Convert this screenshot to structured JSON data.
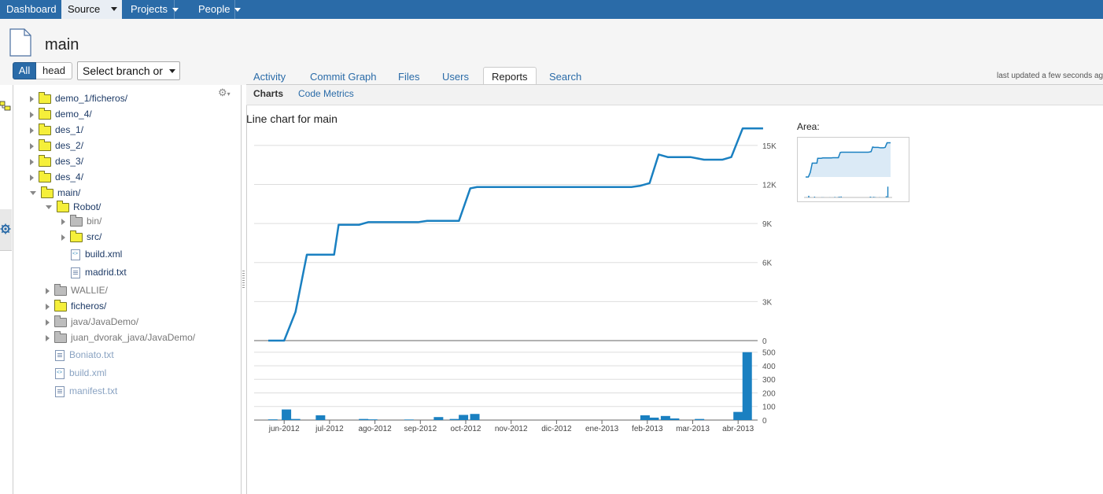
{
  "nav": {
    "dashboard": "Dashboard",
    "source": "Source",
    "projects": "Projects",
    "people": "People"
  },
  "header": {
    "title": "main",
    "btn_all": "All",
    "btn_head": "head",
    "branch_select": "Select branch or"
  },
  "tabs": [
    "Activity",
    "Commit Graph",
    "Files",
    "Users",
    "Reports",
    "Search"
  ],
  "active_tab": "Reports",
  "last_updated": "last updated a few seconds ago",
  "subtabs": [
    "Charts",
    "Code Metrics"
  ],
  "tree": {
    "items": [
      {
        "label": "demo_1/ficheros/",
        "level": 1,
        "kind": "folder"
      },
      {
        "label": "demo_4/",
        "level": 1,
        "kind": "folder"
      },
      {
        "label": "des_1/",
        "level": 1,
        "kind": "folder"
      },
      {
        "label": "des_2/",
        "level": 1,
        "kind": "folder"
      },
      {
        "label": "des_3/",
        "level": 1,
        "kind": "folder"
      },
      {
        "label": "des_4/",
        "level": 1,
        "kind": "folder"
      },
      {
        "label": "main/",
        "level": 1,
        "kind": "folder-open"
      },
      {
        "label": "Robot/",
        "level": 2,
        "kind": "folder-open"
      },
      {
        "label": "bin/",
        "level": 3,
        "kind": "folder-gray"
      },
      {
        "label": "src/",
        "level": 3,
        "kind": "folder"
      },
      {
        "label": "build.xml",
        "level": 3,
        "kind": "xml"
      },
      {
        "label": "madrid.txt",
        "level": 3,
        "kind": "txt"
      },
      {
        "label": "WALLIE/",
        "level": 2,
        "kind": "folder-gray"
      },
      {
        "label": "ficheros/",
        "level": 2,
        "kind": "folder"
      },
      {
        "label": "java/JavaDemo/",
        "level": 2,
        "kind": "folder-gray"
      },
      {
        "label": "juan_dvorak_java/JavaDemo/",
        "level": 2,
        "kind": "folder-gray"
      },
      {
        "label": "Boniato.txt",
        "level": 2,
        "kind": "txt-muted"
      },
      {
        "label": "build.xml",
        "level": 2,
        "kind": "xml-muted"
      },
      {
        "label": "manifest.txt",
        "level": 2,
        "kind": "txt-muted"
      }
    ]
  },
  "colors": {
    "accent": "#2a6ba8",
    "series": "#1a80c1",
    "area_fill": "#dbeaf6"
  },
  "chart": {
    "title": "Line chart for main",
    "area_label": "Area:"
  },
  "chart_data": {
    "type": "line",
    "title": "Line chart for main",
    "x_ticks": [
      "jun-2012",
      "jul-2012",
      "ago-2012",
      "sep-2012",
      "oct-2012",
      "nov-2012",
      "dic-2012",
      "ene-2013",
      "feb-2013",
      "mar-2013",
      "abr-2013"
    ],
    "line": {
      "yticks": [
        "0",
        "3K",
        "6K",
        "9K",
        "12K",
        "15K"
      ],
      "ylim": [
        0,
        16500
      ],
      "x_month": [
        0,
        0.35,
        0.6,
        0.85,
        1.0,
        1.2,
        1.45,
        1.55,
        1.75,
        2.0,
        2.2,
        2.5,
        3.0,
        3.3,
        3.5,
        3.8,
        4.2,
        4.45,
        4.6,
        4.7,
        5.0,
        6.0,
        7.0,
        8.0,
        8.2,
        8.4,
        8.6,
        8.8,
        9.0,
        9.3,
        9.6,
        10.0,
        10.2,
        10.45,
        10.9
      ],
      "y": [
        0,
        0,
        2200,
        6600,
        6600,
        6600,
        6600,
        8900,
        8900,
        8900,
        9100,
        9100,
        9100,
        9100,
        9200,
        9200,
        9200,
        11700,
        11800,
        11800,
        11800,
        11800,
        11800,
        11800,
        11900,
        12100,
        14300,
        14100,
        14100,
        14100,
        13900,
        13900,
        14100,
        16300,
        16300
      ]
    },
    "bars": {
      "yticks": [
        "0",
        "100",
        "200",
        "300",
        "400",
        "500"
      ],
      "ylim": [
        0,
        510
      ],
      "x_month": [
        0.1,
        0.4,
        0.6,
        1.15,
        2.1,
        2.3,
        3.1,
        3.75,
        4.1,
        4.3,
        4.55,
        8.3,
        8.5,
        8.75,
        8.95,
        9.5,
        10.35,
        10.55
      ],
      "values": [
        5,
        78,
        8,
        35,
        8,
        5,
        4,
        22,
        8,
        38,
        45,
        35,
        18,
        30,
        12,
        8,
        60,
        500
      ]
    }
  }
}
